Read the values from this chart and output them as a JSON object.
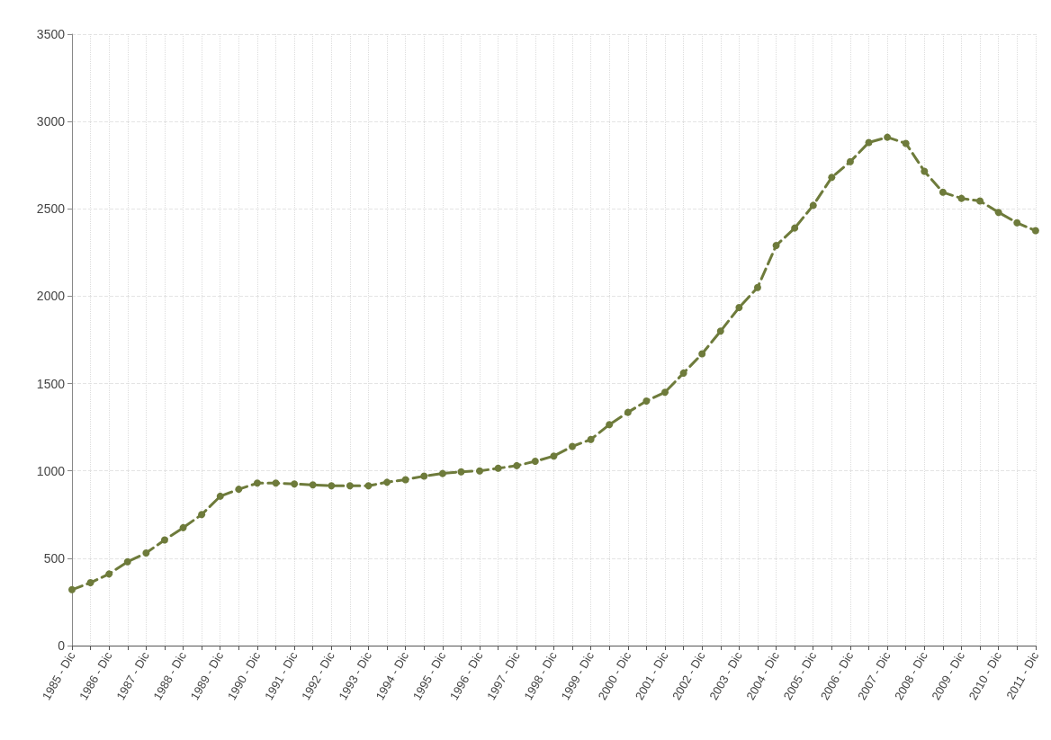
{
  "chart_data": {
    "type": "line",
    "categories": [
      "1985 - Dic",
      null,
      "1986 - Dic",
      null,
      "1987 - Dic",
      null,
      "1988 - Dic",
      null,
      "1989 - Dic",
      null,
      "1990 - Dic",
      null,
      "1991 - Dic",
      null,
      "1992 - Dic",
      null,
      "1993 - Dic",
      null,
      "1994 - Dic",
      null,
      "1995 - Dic",
      null,
      "1996 - Dic",
      null,
      "1997 - Dic",
      null,
      "1998 - Dic",
      null,
      "1999 - Dic",
      null,
      "2000 - Dic",
      null,
      "2001 - Dic",
      null,
      "2002 - Dic",
      null,
      "2003 - Dic",
      null,
      "2004 - Dic",
      null,
      "2005 - Dic",
      null,
      "2006 - Dic",
      null,
      "2007 - Dic",
      null,
      "2008 - Dic",
      null,
      "2009 - Dic",
      null,
      "2010 - Dic",
      null,
      "2011 - Dic"
    ],
    "series": [
      {
        "color": "#6e7b3b",
        "values": [
          320,
          360,
          410,
          480,
          530,
          605,
          675,
          750,
          855,
          895,
          930,
          930,
          925,
          920,
          915,
          915,
          915,
          935,
          950,
          970,
          985,
          995,
          1000,
          1015,
          1030,
          1055,
          1085,
          1140,
          1180,
          1265,
          1335,
          1400,
          1450,
          1560,
          1670,
          1800,
          1935,
          2050,
          2290,
          2390,
          2520,
          2680,
          2770,
          2880,
          2910,
          2875,
          2715,
          2595,
          2560,
          2545,
          2480,
          2420,
          2375
        ]
      }
    ],
    "ylim": [
      0,
      3500
    ],
    "yticks": [
      0,
      500,
      1000,
      1500,
      2000,
      2500,
      3000,
      3500
    ],
    "grid": true,
    "marker": "circle",
    "line_style": "dashed"
  }
}
